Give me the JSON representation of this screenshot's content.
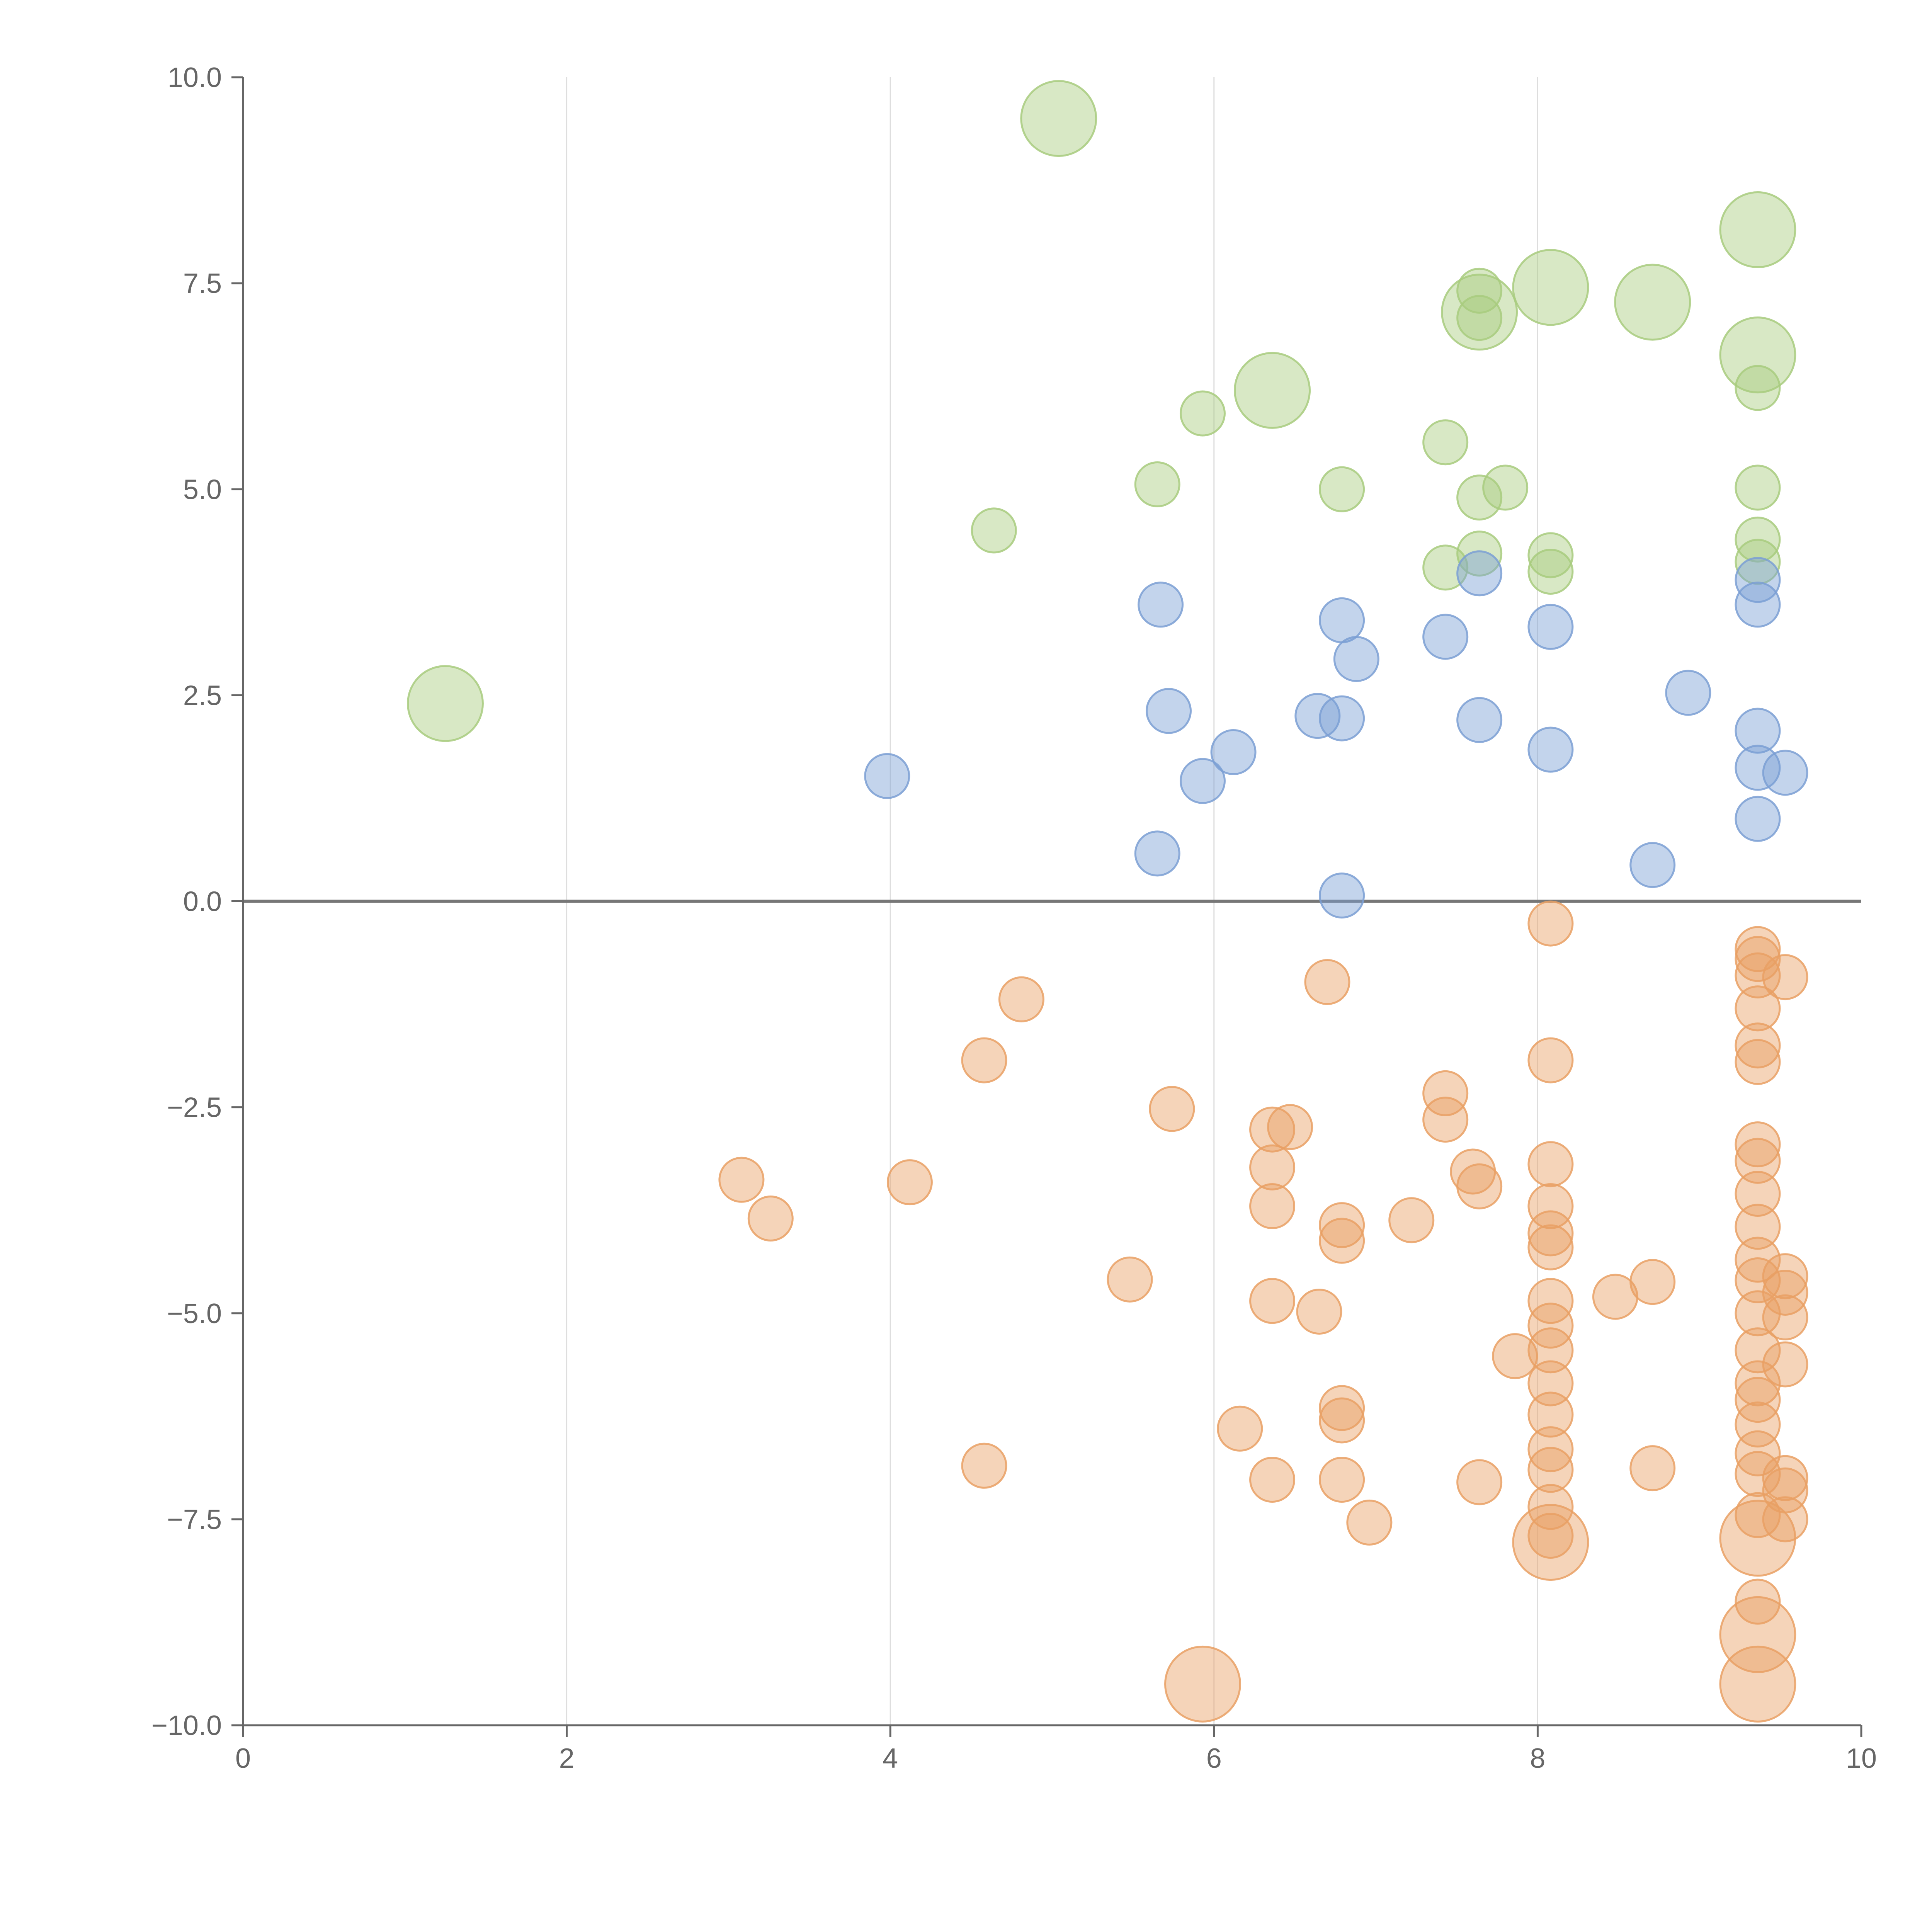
{
  "chart_data": {
    "type": "scatter",
    "title": "",
    "xlabel": "",
    "ylabel": "",
    "xlim": [
      0,
      10
    ],
    "ylim": [
      -10,
      10
    ],
    "x_ticks": [
      "0",
      "2",
      "4",
      "6",
      "8",
      "10"
    ],
    "y_ticks": [
      "10.0",
      "7.5",
      "5.0",
      "2.5",
      "0.0",
      "−2.5",
      "−5.0",
      "−7.5",
      "−10.0"
    ],
    "grid": "vertical",
    "legend": "none",
    "colors": {
      "green": "#a8cb7e",
      "blue": "#7b9fd4",
      "orange": "#e9a064",
      "axis": "#666666",
      "grid": "#dddddd"
    },
    "series": [
      {
        "color": "green",
        "points": [
          [
            1.25,
            2.4,
            1
          ],
          [
            5.04,
            9.5,
            1
          ],
          [
            6.36,
            6.2,
            1
          ],
          [
            7.64,
            7.15,
            1
          ],
          [
            8.08,
            7.45,
            1
          ],
          [
            8.71,
            7.27,
            1
          ],
          [
            9.36,
            8.15,
            1
          ],
          [
            9.36,
            6.63,
            1
          ],
          [
            4.64,
            4.5,
            0
          ],
          [
            5.65,
            5.06,
            0
          ],
          [
            5.93,
            5.92,
            0
          ],
          [
            6.79,
            5.0,
            0
          ],
          [
            7.43,
            5.57,
            0
          ],
          [
            7.43,
            4.05,
            0
          ],
          [
            7.64,
            4.9,
            0
          ],
          [
            7.64,
            4.22,
            0
          ],
          [
            7.64,
            7.41,
            0
          ],
          [
            7.64,
            7.08,
            0
          ],
          [
            7.8,
            5.02,
            0
          ],
          [
            8.08,
            4.2,
            0
          ],
          [
            8.08,
            4.0,
            0
          ],
          [
            9.36,
            6.23,
            0
          ],
          [
            9.36,
            5.02,
            0
          ],
          [
            9.36,
            4.39,
            0
          ],
          [
            9.36,
            4.12,
            0
          ]
        ]
      },
      {
        "color": "blue",
        "points": [
          [
            3.98,
            1.52,
            0
          ],
          [
            5.65,
            0.58,
            0
          ],
          [
            5.67,
            3.6,
            0
          ],
          [
            5.72,
            2.31,
            0
          ],
          [
            5.93,
            1.46,
            0
          ],
          [
            6.12,
            1.81,
            0
          ],
          [
            6.64,
            2.25,
            0
          ],
          [
            6.79,
            3.41,
            0
          ],
          [
            6.79,
            2.22,
            0
          ],
          [
            6.79,
            0.07,
            0
          ],
          [
            6.88,
            2.94,
            0
          ],
          [
            7.43,
            3.21,
            0
          ],
          [
            7.64,
            3.98,
            0
          ],
          [
            7.64,
            2.2,
            0
          ],
          [
            8.08,
            3.33,
            0
          ],
          [
            8.08,
            1.84,
            0
          ],
          [
            8.71,
            0.44,
            0
          ],
          [
            8.93,
            2.53,
            0
          ],
          [
            9.36,
            3.9,
            0
          ],
          [
            9.36,
            3.6,
            0
          ],
          [
            9.36,
            2.07,
            0
          ],
          [
            9.36,
            1.62,
            0
          ],
          [
            9.36,
            1.0,
            0
          ],
          [
            9.53,
            1.56,
            0
          ]
        ]
      },
      {
        "color": "orange",
        "points": [
          [
            5.93,
            -9.5,
            1
          ],
          [
            8.08,
            -7.78,
            1
          ],
          [
            9.36,
            -7.73,
            1
          ],
          [
            9.36,
            -8.9,
            1
          ],
          [
            9.36,
            -9.5,
            1
          ],
          [
            3.08,
            -3.38,
            0
          ],
          [
            3.26,
            -3.85,
            0
          ],
          [
            4.12,
            -3.41,
            0
          ],
          [
            4.58,
            -1.93,
            0
          ],
          [
            4.58,
            -6.85,
            0
          ],
          [
            4.81,
            -1.19,
            0
          ],
          [
            5.48,
            -4.59,
            0
          ],
          [
            5.74,
            -2.52,
            0
          ],
          [
            6.16,
            -6.4,
            0
          ],
          [
            6.36,
            -2.77,
            0
          ],
          [
            6.36,
            -3.23,
            0
          ],
          [
            6.36,
            -3.7,
            0
          ],
          [
            6.36,
            -4.85,
            0
          ],
          [
            6.36,
            -7.02,
            0
          ],
          [
            6.47,
            -2.74,
            0
          ],
          [
            6.65,
            -4.98,
            0
          ],
          [
            6.7,
            -0.98,
            0
          ],
          [
            6.79,
            -3.93,
            0
          ],
          [
            6.79,
            -4.12,
            0
          ],
          [
            6.79,
            -6.15,
            0
          ],
          [
            6.79,
            -6.3,
            0
          ],
          [
            6.79,
            -7.02,
            0
          ],
          [
            6.96,
            -7.54,
            0
          ],
          [
            7.22,
            -3.87,
            0
          ],
          [
            7.43,
            -2.33,
            0
          ],
          [
            7.43,
            -2.65,
            0
          ],
          [
            7.6,
            -3.28,
            0
          ],
          [
            7.64,
            -3.46,
            0
          ],
          [
            7.64,
            -7.05,
            0
          ],
          [
            7.86,
            -5.52,
            0
          ],
          [
            8.08,
            -0.27,
            0
          ],
          [
            8.08,
            -1.93,
            0
          ],
          [
            8.08,
            -3.19,
            0
          ],
          [
            8.08,
            -3.7,
            0
          ],
          [
            8.08,
            -4.03,
            0
          ],
          [
            8.08,
            -4.2,
            0
          ],
          [
            8.08,
            -4.85,
            0
          ],
          [
            8.08,
            -5.15,
            0
          ],
          [
            8.08,
            -5.45,
            0
          ],
          [
            8.08,
            -5.85,
            0
          ],
          [
            8.08,
            -6.23,
            0
          ],
          [
            8.08,
            -6.65,
            0
          ],
          [
            8.08,
            -6.9,
            0
          ],
          [
            8.08,
            -7.35,
            0
          ],
          [
            8.08,
            -7.7,
            0
          ],
          [
            8.48,
            -4.8,
            0
          ],
          [
            8.71,
            -4.62,
            0
          ],
          [
            8.71,
            -6.88,
            0
          ],
          [
            9.36,
            -0.58,
            0
          ],
          [
            9.36,
            -0.7,
            0
          ],
          [
            9.36,
            -0.9,
            0
          ],
          [
            9.36,
            -1.3,
            0
          ],
          [
            9.36,
            -1.75,
            0
          ],
          [
            9.36,
            -1.95,
            0
          ],
          [
            9.36,
            -2.95,
            0
          ],
          [
            9.36,
            -3.15,
            0
          ],
          [
            9.36,
            -3.55,
            0
          ],
          [
            9.36,
            -3.95,
            0
          ],
          [
            9.36,
            -4.35,
            0
          ],
          [
            9.36,
            -4.6,
            0
          ],
          [
            9.36,
            -5.0,
            0
          ],
          [
            9.36,
            -5.45,
            0
          ],
          [
            9.36,
            -5.85,
            0
          ],
          [
            9.36,
            -6.05,
            0
          ],
          [
            9.36,
            -6.35,
            0
          ],
          [
            9.36,
            -6.7,
            0
          ],
          [
            9.36,
            -6.95,
            0
          ],
          [
            9.36,
            -7.45,
            0
          ],
          [
            9.36,
            -8.5,
            0
          ],
          [
            9.53,
            -0.92,
            0
          ],
          [
            9.53,
            -4.55,
            0
          ],
          [
            9.53,
            -4.75,
            0
          ],
          [
            9.53,
            -5.05,
            0
          ],
          [
            9.53,
            -5.62,
            0
          ],
          [
            9.53,
            -7.0,
            0
          ],
          [
            9.53,
            -7.15,
            0
          ],
          [
            9.53,
            -7.5,
            0
          ]
        ]
      }
    ]
  }
}
